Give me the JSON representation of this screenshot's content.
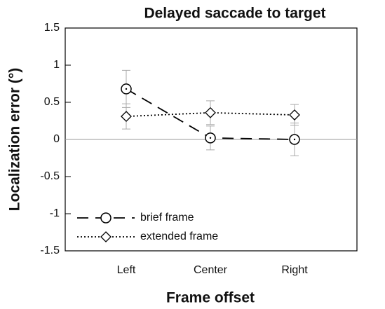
{
  "chart_data": {
    "type": "line",
    "title": "Delayed saccade to target",
    "xlabel": "Frame offset",
    "ylabel": "Localization error (°)",
    "categories": [
      "Left",
      "Center",
      "Right"
    ],
    "series": [
      {
        "name": "brief frame",
        "color": "#000000",
        "linestyle": "dashed",
        "marker": "circle",
        "values": [
          0.68,
          0.02,
          0.0
        ],
        "errors": [
          0.25,
          0.16,
          0.22
        ]
      },
      {
        "name": "extended frame",
        "color": "#000000",
        "linestyle": "dotted",
        "marker": "diamond",
        "values": [
          0.31,
          0.36,
          0.33
        ],
        "errors": [
          0.17,
          0.16,
          0.14
        ]
      }
    ],
    "ylim": [
      -1.5,
      1.5
    ],
    "yticks": [
      -1.5,
      -1,
      -0.5,
      0,
      0.5,
      1,
      1.5
    ],
    "legend": "lower left",
    "zero_line": true
  }
}
